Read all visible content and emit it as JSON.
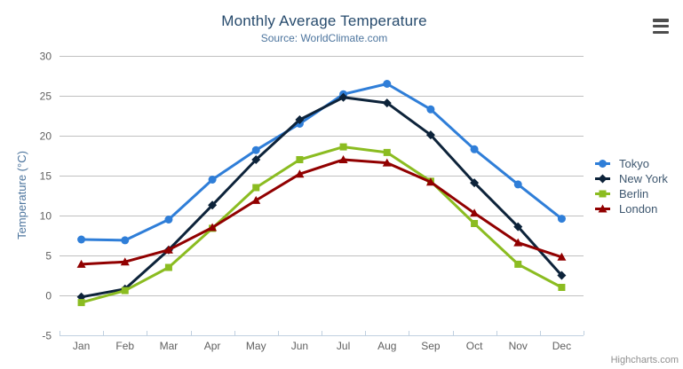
{
  "chart_data": {
    "type": "line",
    "title": "Monthly Average Temperature",
    "subtitle": "Source: WorldClimate.com",
    "xlabel": "",
    "ylabel": "Temperature (°C)",
    "categories": [
      "Jan",
      "Feb",
      "Mar",
      "Apr",
      "May",
      "Jun",
      "Jul",
      "Aug",
      "Sep",
      "Oct",
      "Nov",
      "Dec"
    ],
    "ylim": [
      -5,
      30
    ],
    "ytick_step": 5,
    "grid": true,
    "legend_position": "right",
    "series": [
      {
        "name": "Tokyo",
        "color": "#2f7ed8",
        "symbol": "circle",
        "values": [
          7.0,
          6.9,
          9.5,
          14.5,
          18.2,
          21.5,
          25.2,
          26.5,
          23.3,
          18.3,
          13.9,
          9.6
        ]
      },
      {
        "name": "New York",
        "color": "#0d233a",
        "symbol": "diamond",
        "values": [
          -0.2,
          0.8,
          5.7,
          11.3,
          17.0,
          22.0,
          24.8,
          24.1,
          20.1,
          14.1,
          8.6,
          2.5
        ]
      },
      {
        "name": "Berlin",
        "color": "#8bbc21",
        "symbol": "square",
        "values": [
          -0.9,
          0.6,
          3.5,
          8.4,
          13.5,
          17.0,
          18.6,
          17.9,
          14.3,
          9.0,
          3.9,
          1.0
        ]
      },
      {
        "name": "London",
        "color": "#910000",
        "symbol": "triangle",
        "values": [
          3.9,
          4.2,
          5.7,
          8.5,
          11.9,
          15.2,
          17.0,
          16.6,
          14.2,
          10.3,
          6.6,
          4.8
        ]
      }
    ],
    "colors": {
      "title": "#274b6d",
      "subtitle": "#4d759e",
      "grid": "#C0C0C0",
      "axis_line": "#C0D0E0",
      "tick_label": "#606060"
    }
  },
  "credits": {
    "label": "Highcharts.com"
  }
}
